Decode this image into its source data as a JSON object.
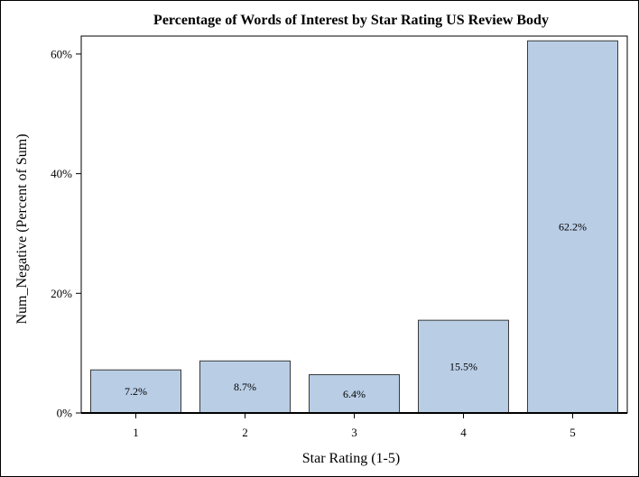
{
  "chart_data": {
    "type": "bar",
    "title": "Percentage of Words of Interest by Star Rating  US Review Body",
    "xlabel": "Star Rating (1-5)",
    "ylabel": "Num_Negative (Percent of Sum)",
    "categories": [
      "1",
      "2",
      "3",
      "4",
      "5"
    ],
    "values": [
      7.2,
      8.7,
      6.4,
      15.5,
      62.2
    ],
    "value_labels": [
      "7.2%",
      "8.7%",
      "6.4%",
      "15.5%",
      "62.2%"
    ],
    "ylim": [
      0,
      63
    ],
    "yticks": [
      0,
      20,
      40,
      60
    ],
    "ytick_labels": [
      "0%",
      "20%",
      "40%",
      "60%"
    ],
    "grid": false,
    "legend": "none",
    "bar_color": "#b9cde5",
    "bar_edge_color": "#3a3a3a"
  }
}
